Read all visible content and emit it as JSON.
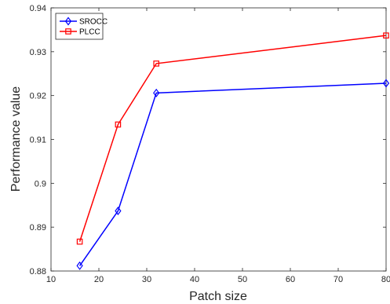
{
  "chart_data": {
    "type": "line",
    "title": "",
    "xlabel": "Patch size",
    "ylabel": "Performance value",
    "xlim": [
      10,
      80
    ],
    "ylim": [
      0.88,
      0.94
    ],
    "xticks": [
      10,
      20,
      30,
      40,
      50,
      60,
      70,
      80
    ],
    "xtick_labels": [
      "10",
      "20",
      "30",
      "40",
      "50",
      "60",
      "70",
      "80"
    ],
    "yticks": [
      0.88,
      0.89,
      0.9,
      0.91,
      0.92,
      0.93,
      0.94
    ],
    "ytick_labels": [
      "0.88",
      "0.89",
      "0.9",
      "0.91",
      "0.92",
      "0.93",
      "0.94"
    ],
    "grid": false,
    "legend_position": "top-left",
    "x": [
      16,
      24,
      32,
      80
    ],
    "series": [
      {
        "name": "SROCC",
        "color": "#0000ff",
        "marker": "diamond",
        "values": [
          0.8812,
          0.8937,
          0.9206,
          0.9228
        ]
      },
      {
        "name": "PLCC",
        "color": "#ff0000",
        "marker": "square",
        "values": [
          0.8867,
          0.9134,
          0.9273,
          0.9337
        ]
      }
    ]
  }
}
